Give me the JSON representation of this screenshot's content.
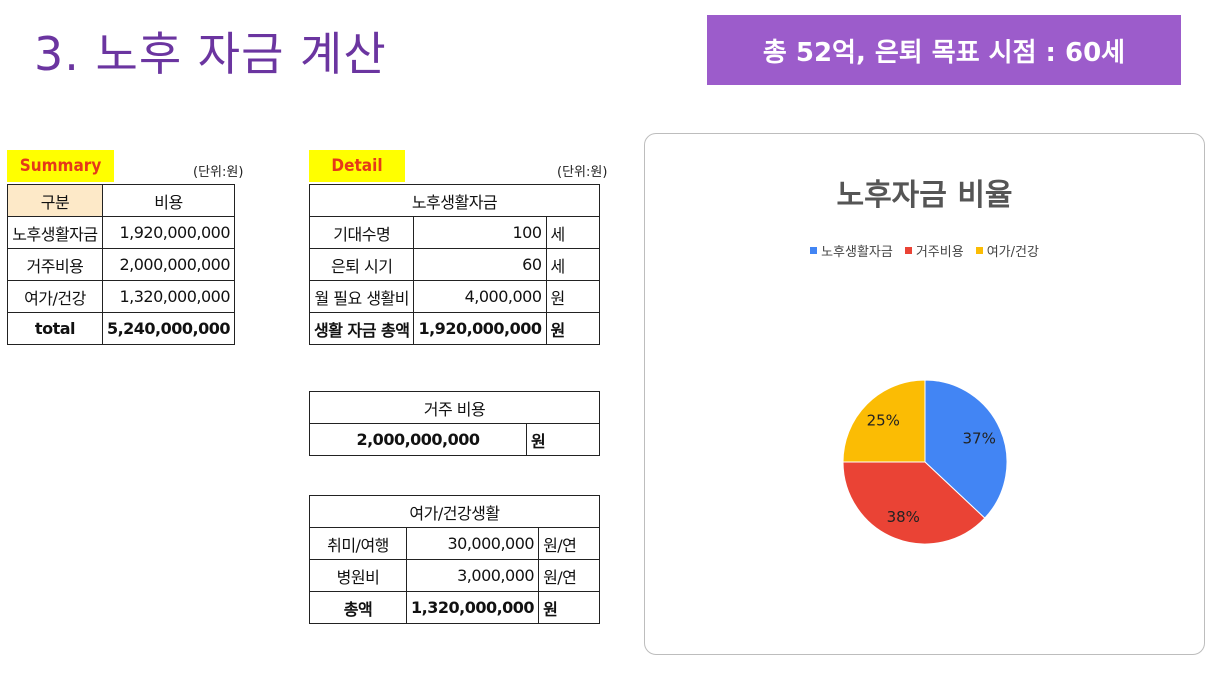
{
  "page": {
    "title": "3. 노후 자금 계산",
    "goal_banner": "총 52억, 은퇴 목표 시점  : 60세"
  },
  "summary": {
    "tag": "Summary",
    "unit": "(단위:원)",
    "header": [
      "구분",
      "비용"
    ],
    "rows": [
      {
        "label": "노후생활자금",
        "value": "1,920,000,000"
      },
      {
        "label": "거주비용",
        "value": "2,000,000,000"
      },
      {
        "label": "여가/건강",
        "value": "1,320,000,000"
      }
    ],
    "total_label": "total",
    "total_value": "5,240,000,000"
  },
  "detail": {
    "tag": "Detail",
    "unit": "(단위:원)",
    "living": {
      "title": "노후생활자금",
      "rows": [
        {
          "label": "기대수명",
          "value": "100",
          "unit": "세"
        },
        {
          "label": "은퇴 시기",
          "value": "60",
          "unit": "세"
        },
        {
          "label": "월 필요 생활비",
          "value": "4,000,000",
          "unit": "원"
        }
      ],
      "total": {
        "label": "생활 자금 총액",
        "value": "1,920,000,000",
        "unit": "원"
      }
    },
    "housing": {
      "title": "거주 비용",
      "value": "2,000,000,000",
      "unit": "원"
    },
    "leisure": {
      "title": "여가/건강생활",
      "rows": [
        {
          "label": "취미/여행",
          "value": "30,000,000",
          "unit": "원/연"
        },
        {
          "label": "병원비",
          "value": "3,000,000",
          "unit": "원/연"
        }
      ],
      "total": {
        "label": "총액",
        "value": "1,320,000,000",
        "unit": "원"
      }
    }
  },
  "chart_data": {
    "type": "pie",
    "title": "노후자금 비율",
    "legend_position": "top",
    "categories": [
      "노후생활자금",
      "거주비용",
      "여가/건강"
    ],
    "values": [
      37,
      38,
      25
    ],
    "labels": [
      "37%",
      "38%",
      "25%"
    ],
    "colors": [
      "#4285f4",
      "#ea4335",
      "#fbbc04"
    ]
  }
}
